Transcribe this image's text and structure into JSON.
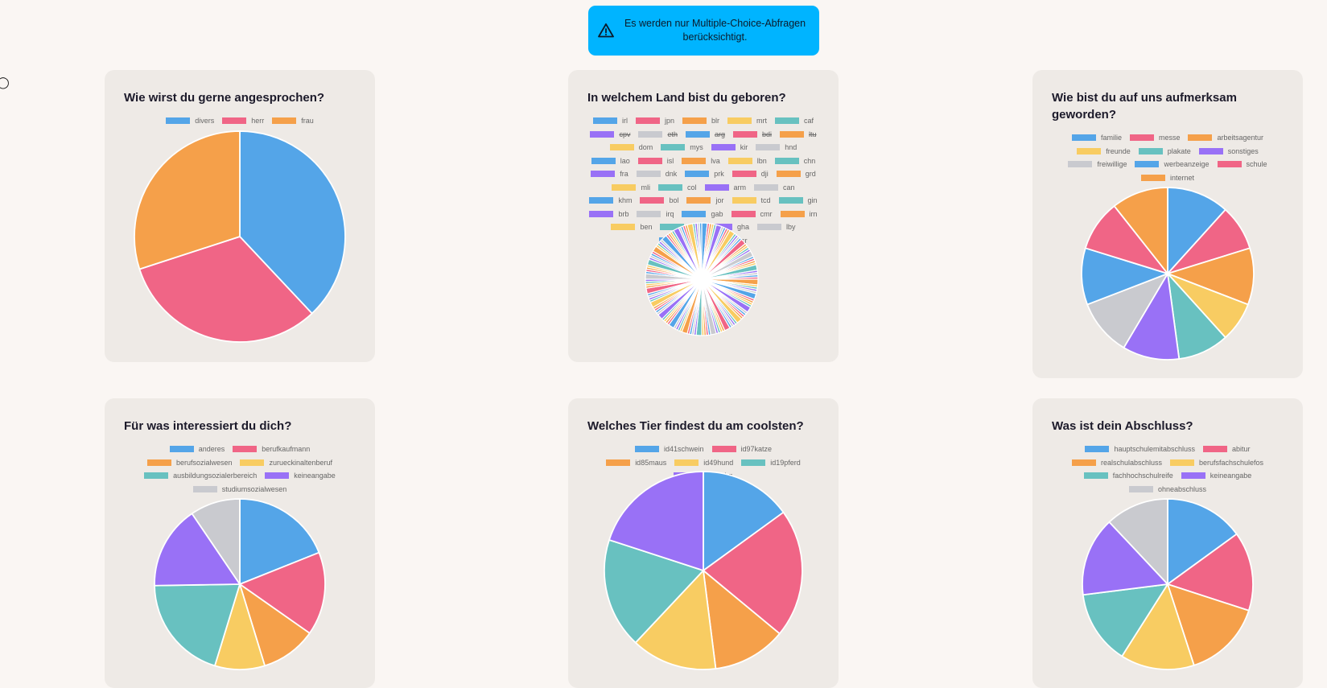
{
  "banner": {
    "text": "Es werden nur Multiple-Choice-Abfragen berücksichtigt."
  },
  "colors": [
    "#54a5e8",
    "#f06586",
    "#f5a04a",
    "#f8cc62",
    "#68c1c0",
    "#9971f6",
    "#c9cacf"
  ],
  "chart_data": [
    {
      "type": "pie",
      "title": "Wie wirst du gerne angesprochen?",
      "legend_position": "top",
      "categories": [
        "divers",
        "herr",
        "frau"
      ],
      "values": [
        38,
        32,
        30
      ]
    },
    {
      "type": "pie",
      "title": "In welchem Land bist du geboren?",
      "legend_position": "top",
      "hidden_categories": [
        "cpv",
        "eth",
        "arg",
        "bdi",
        "ltu"
      ],
      "categories": [
        "irl",
        "jpn",
        "blr",
        "mrt",
        "caf",
        "cpv",
        "eth",
        "arg",
        "bdi",
        "ltu",
        "dom",
        "mys",
        "kir",
        "hnd",
        "lao",
        "isl",
        "lva",
        "lbn",
        "chn",
        "fra",
        "dnk",
        "prk",
        "dji",
        "grd",
        "mli",
        "col",
        "arm",
        "can",
        "khm",
        "bol",
        "jor",
        "tcd",
        "gin",
        "brb",
        "irq",
        "gab",
        "cmr",
        "irn",
        "ben",
        "xkx",
        "gha",
        "lby",
        "gmb",
        "isr"
      ],
      "visible_category_count": 44,
      "values": [
        1,
        1,
        1,
        1,
        1,
        0,
        0,
        0,
        0,
        0,
        1,
        1,
        1,
        1,
        1,
        1,
        1,
        1,
        1,
        1,
        1,
        1,
        1,
        1,
        1,
        1,
        1,
        1,
        1,
        1,
        1,
        1,
        1,
        1,
        1,
        1,
        1,
        1,
        1,
        1,
        1,
        1,
        1,
        1
      ],
      "note_unlabeled_slices": 120
    },
    {
      "type": "pie",
      "title": "Wie bist du auf uns aufmerksam geworden?",
      "legend_position": "top",
      "categories": [
        "familie",
        "messe",
        "arbeitsagentur",
        "freunde",
        "plakate",
        "sonstiges",
        "freiwillige",
        "werbeanzeige",
        "schule",
        "internet"
      ],
      "values": [
        11,
        8,
        10,
        7,
        9,
        10,
        10,
        10,
        9,
        10
      ]
    },
    {
      "type": "pie",
      "title": "Für was interessiert du dich?",
      "legend_position": "top",
      "categories": [
        "anderes",
        "berufkaufmann",
        "berufsozialwesen",
        "zurueckinaltenberuf",
        "ausbildungsozialerbereich",
        "keineangabe",
        "studiumsozialwesen"
      ],
      "values": [
        18,
        15,
        10,
        9,
        19,
        15,
        9
      ]
    },
    {
      "type": "pie",
      "title": "Welches Tier findest du am coolsten?",
      "legend_position": "top",
      "categories": [
        "id41schwein",
        "id97katze",
        "id85maus",
        "id49hund",
        "id19pferd",
        "id40huhn"
      ],
      "values": [
        15,
        21,
        12,
        14,
        18,
        20
      ]
    },
    {
      "type": "pie",
      "title": "Was ist dein Abschluss?",
      "legend_position": "top",
      "categories": [
        "hauptschulemitabschluss",
        "abitur",
        "realschulabschluss",
        "berufsfachschulefos",
        "fachhochschulreife",
        "keineangabe",
        "ohneabschluss"
      ],
      "values": [
        15,
        15,
        15,
        14,
        14,
        15,
        12
      ]
    }
  ]
}
